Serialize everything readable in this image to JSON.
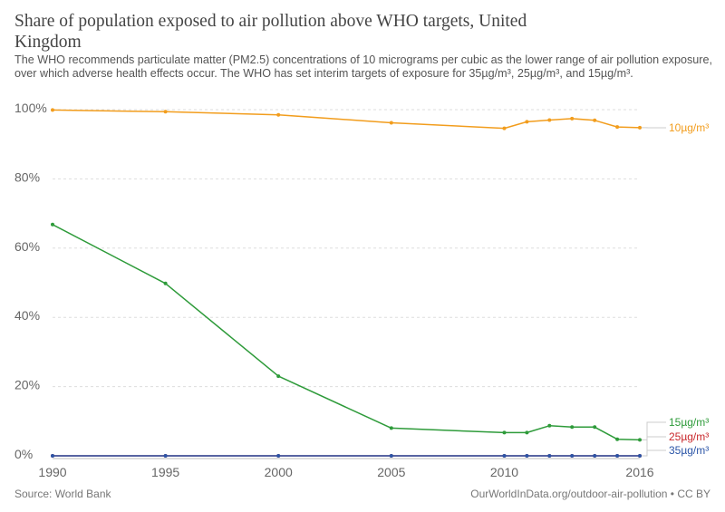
{
  "chart_data": {
    "type": "line",
    "title": "Share of population exposed to air pollution above WHO targets, United Kingdom",
    "subtitle": "The WHO recommends particulate matter (PM2.5) concentrations of 10 micrograms per cubic as the lower range of air pollution exposure, over which adverse health effects occur. The WHO has set interim targets of exposure for 35µg/m³, 25µg/m³, and 15µg/m³.",
    "xlabel": "",
    "ylabel": "",
    "x": [
      1990,
      1995,
      2000,
      2005,
      2010,
      2011,
      2012,
      2013,
      2014,
      2015,
      2016
    ],
    "xlim": [
      1990,
      2016
    ],
    "ylim": [
      0,
      100
    ],
    "x_ticks": [
      "1990",
      "1995",
      "2000",
      "2005",
      "2010",
      "2016"
    ],
    "y_ticks": [
      "0%",
      "20%",
      "40%",
      "60%",
      "80%",
      "100%"
    ],
    "grid": true,
    "series": [
      {
        "name": "10µg/m³",
        "color": "#f29d1d",
        "values": [
          99.9,
          99.4,
          98.5,
          96.2,
          94.6,
          96.5,
          97.0,
          97.4,
          96.9,
          95.0,
          94.8
        ]
      },
      {
        "name": "15µg/m³",
        "color": "#2e9b3a",
        "values": [
          66.8,
          49.8,
          23.0,
          8.0,
          6.7,
          6.7,
          8.7,
          8.3,
          8.3,
          4.8,
          4.6
        ]
      },
      {
        "name": "25µg/m³",
        "color": "#c9282c",
        "values": [
          0,
          0,
          0,
          0,
          0,
          0,
          0,
          0,
          0,
          0,
          0
        ]
      },
      {
        "name": "35µg/m³",
        "color": "#2b55a7",
        "values": [
          0,
          0,
          0,
          0,
          0,
          0,
          0,
          0,
          0,
          0,
          0
        ]
      }
    ],
    "source": "Source: World Bank",
    "credit": "OurWorldInData.org/outdoor-air-pollution • CC BY"
  }
}
